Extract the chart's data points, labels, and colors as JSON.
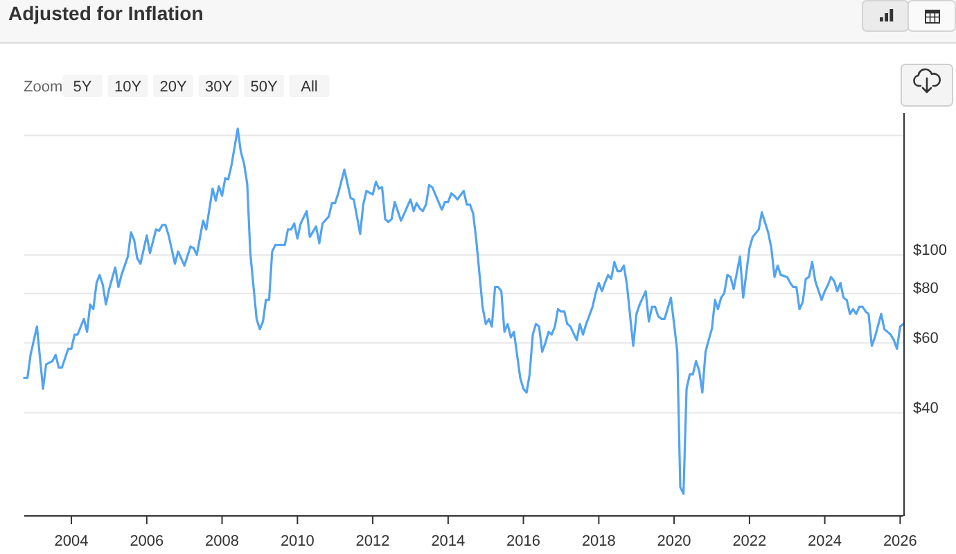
{
  "chart_data": {
    "type": "line",
    "title": "Adjusted for Inflation",
    "annotations": [
      "Zoom",
      "5Y",
      "10Y",
      "20Y",
      "30Y",
      "50Y",
      "All"
    ],
    "x": [
      "2002-10",
      "2002-11",
      "2002-12",
      "2003-02",
      "2003-04",
      "2003-05",
      "2003-07",
      "2003-08",
      "2003-09",
      "2003-10",
      "2003-12",
      "2004-01",
      "2004-02",
      "2004-03",
      "2004-05",
      "2004-06",
      "2004-07",
      "2004-08",
      "2004-09",
      "2004-10",
      "2004-11",
      "2004-12",
      "2005-01",
      "2005-03",
      "2005-04",
      "2005-05",
      "2005-07",
      "2005-08",
      "2005-09",
      "2005-10",
      "2005-11",
      "2006-01",
      "2006-02",
      "2006-04",
      "2006-05",
      "2006-06",
      "2006-07",
      "2006-08",
      "2006-10",
      "2006-11",
      "2007-01",
      "2007-03",
      "2007-04",
      "2007-05",
      "2007-07",
      "2007-08",
      "2007-10",
      "2007-11",
      "2007-12",
      "2008-01",
      "2008-02",
      "2008-03",
      "2008-04",
      "2008-06",
      "2008-07",
      "2008-08",
      "2008-09",
      "2008-10",
      "2008-12",
      "2009-01",
      "2009-02",
      "2009-03",
      "2009-04",
      "2009-05",
      "2009-06",
      "2009-09",
      "2009-10",
      "2009-11",
      "2009-12",
      "2010-01",
      "2010-02",
      "2010-04",
      "2010-05",
      "2010-07",
      "2010-08",
      "2010-09",
      "2010-11",
      "2010-12",
      "2011-01",
      "2011-02",
      "2011-04",
      "2011-06",
      "2011-07",
      "2011-09",
      "2011-10",
      "2011-11",
      "2012-01",
      "2012-02",
      "2012-03",
      "2012-04",
      "2012-05",
      "2012-06",
      "2012-07",
      "2012-08",
      "2012-10",
      "2012-11",
      "2013-01",
      "2013-02",
      "2013-03",
      "2013-04",
      "2013-05",
      "2013-06",
      "2013-07",
      "2013-08",
      "2013-11",
      "2013-12",
      "2014-01",
      "2014-02",
      "2014-03",
      "2014-04",
      "2014-06",
      "2014-07",
      "2014-08",
      "2014-09",
      "2014-10",
      "2014-12",
      "2015-01",
      "2015-02",
      "2015-03",
      "2015-04",
      "2015-05",
      "2015-06",
      "2015-07",
      "2015-08",
      "2015-09",
      "2015-10",
      "2015-11",
      "2015-12",
      "2016-01",
      "2016-02",
      "2016-03",
      "2016-04",
      "2016-05",
      "2016-06",
      "2016-07",
      "2016-08",
      "2016-09",
      "2016-10",
      "2016-11",
      "2016-12",
      "2017-01",
      "2017-02",
      "2017-03",
      "2017-04",
      "2017-06",
      "2017-07",
      "2017-08",
      "2017-09",
      "2017-11",
      "2017-12",
      "2018-01",
      "2018-02",
      "2018-03",
      "2018-04",
      "2018-05",
      "2018-06",
      "2018-07",
      "2018-08",
      "2018-09",
      "2018-10",
      "2018-11",
      "2018-12",
      "2019-01",
      "2019-02",
      "2019-04",
      "2019-05",
      "2019-06",
      "2019-07",
      "2019-08",
      "2019-09",
      "2019-10",
      "2019-12",
      "2020-01",
      "2020-02",
      "2020-03",
      "2020-04",
      "2020-05",
      "2020-06",
      "2020-07",
      "2020-08",
      "2020-09",
      "2020-10",
      "2020-11",
      "2020-12",
      "2021-01",
      "2021-02",
      "2021-03",
      "2021-04",
      "2021-05",
      "2021-06",
      "2021-07",
      "2021-08",
      "2021-10",
      "2021-11",
      "2022-01",
      "2022-02",
      "2022-04",
      "2022-05",
      "2022-07",
      "2022-08",
      "2022-09",
      "2022-10",
      "2022-11",
      "2023-01",
      "2023-02",
      "2023-03",
      "2023-04",
      "2023-05",
      "2023-06",
      "2023-07",
      "2023-08",
      "2023-09",
      "2023-10",
      "2023-12",
      "2024-01",
      "2024-02",
      "2024-03",
      "2024-04",
      "2024-05",
      "2024-06",
      "2024-07",
      "2024-08",
      "2024-09",
      "2024-10",
      "2024-11",
      "2024-12",
      "2025-01",
      "2025-02",
      "2025-03",
      "2025-04",
      "2025-05",
      "2025-07",
      "2025-08",
      "2025-10",
      "2025-11",
      "2025-12",
      "2026-01",
      "2026-02"
    ],
    "series": [
      {
        "color": "#52a3f2",
        "values": [
          49,
          49,
          56,
          66,
          46,
          53,
          54,
          56,
          52,
          52,
          58,
          58,
          63,
          63,
          69,
          64,
          75,
          73,
          85,
          89,
          84,
          75,
          82,
          93,
          83,
          89,
          99,
          114,
          109,
          98,
          95,
          112,
          101,
          116,
          115,
          119,
          119,
          112,
          95,
          102,
          94,
          105,
          104,
          100,
          122,
          116,
          147,
          137,
          149,
          141,
          156,
          155,
          168,
          208,
          182,
          170,
          151,
          101,
          69,
          65,
          68,
          77,
          77,
          102,
          106,
          106,
          116,
          116,
          120,
          110,
          120,
          129,
          111,
          118,
          107,
          120,
          125,
          135,
          135,
          143,
          164,
          139,
          138,
          113,
          134,
          145,
          142,
          153,
          147,
          148,
          123,
          121,
          123,
          136,
          122,
          127,
          138,
          129,
          135,
          131,
          129,
          134,
          150,
          148,
          130,
          136,
          136,
          143,
          141,
          138,
          145,
          134,
          134,
          127,
          109,
          74,
          67,
          69,
          66,
          83,
          83,
          81,
          64,
          67,
          62,
          64,
          56,
          49,
          46,
          45,
          50,
          63,
          67,
          66,
          57,
          60,
          64,
          63,
          66,
          73,
          72,
          72,
          67,
          66,
          61,
          67,
          63,
          67,
          74,
          80,
          85,
          81,
          85,
          89,
          87,
          96,
          91,
          91,
          94,
          84,
          70,
          59,
          71,
          75,
          81,
          68,
          74,
          74,
          70,
          69,
          69,
          78,
          67,
          57,
          26,
          25,
          46,
          50,
          50,
          54,
          51,
          45,
          57,
          61,
          65,
          77,
          73,
          78,
          80,
          89,
          88,
          82,
          99,
          78,
          104,
          111,
          116,
          128,
          114,
          104,
          88,
          94,
          89,
          88,
          85,
          83,
          83,
          73,
          76,
          87,
          88,
          96,
          86,
          77,
          81,
          84,
          88,
          86,
          81,
          85,
          78,
          77,
          71,
          73,
          71,
          74,
          74,
          72,
          71,
          59,
          62,
          71,
          65,
          63,
          61,
          58,
          66,
          67
        ]
      }
    ],
    "xlim": [
      "2002-10",
      "2026-02"
    ],
    "xticks": [
      "2004",
      "2006",
      "2008",
      "2010",
      "2012",
      "2014",
      "2016",
      "2018",
      "2020",
      "2022",
      "2024",
      "2026"
    ],
    "ylim": [
      22,
      228
    ],
    "yticks": [
      {
        "value": 40,
        "label": "$40"
      },
      {
        "value": 60,
        "label": "$60"
      },
      {
        "value": 80,
        "label": "$80"
      },
      {
        "value": 100,
        "label": "$100"
      },
      {
        "value": 200,
        "label": null
      }
    ],
    "log": true,
    "grid": "y"
  }
}
